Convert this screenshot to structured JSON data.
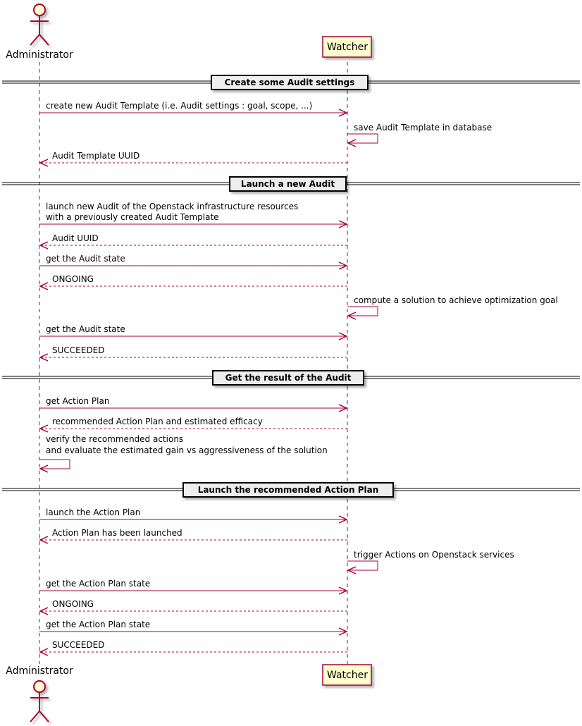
{
  "colors": {
    "line": "#A80036",
    "participant_fill": "#FEFECE",
    "divider_fill": "#EEEEEE"
  },
  "participants": {
    "admin": {
      "label": "Administrator",
      "kind": "actor"
    },
    "watcher": {
      "label": "Watcher",
      "kind": "participant"
    }
  },
  "events": [
    {
      "type": "divider",
      "text": "Create some Audit settings"
    },
    {
      "type": "sync",
      "from": "admin",
      "to": "watcher",
      "lines": [
        "create new Audit Template (i.e. Audit settings : goal, scope, ...)"
      ]
    },
    {
      "type": "self",
      "on": "watcher",
      "lines": [
        "save Audit Template in database"
      ]
    },
    {
      "type": "return",
      "from": "watcher",
      "to": "admin",
      "lines": [
        "Audit Template UUID"
      ]
    },
    {
      "type": "divider",
      "text": "Launch a new Audit"
    },
    {
      "type": "sync",
      "from": "admin",
      "to": "watcher",
      "lines": [
        "launch new Audit of the Openstack infrastructure resources",
        "with a previously created Audit Template"
      ]
    },
    {
      "type": "return",
      "from": "watcher",
      "to": "admin",
      "lines": [
        "Audit UUID"
      ]
    },
    {
      "type": "sync",
      "from": "admin",
      "to": "watcher",
      "lines": [
        "get the Audit state"
      ]
    },
    {
      "type": "return",
      "from": "watcher",
      "to": "admin",
      "lines": [
        "ONGOING"
      ]
    },
    {
      "type": "self",
      "on": "watcher",
      "lines": [
        "compute a solution to achieve optimization goal"
      ]
    },
    {
      "type": "sync",
      "from": "admin",
      "to": "watcher",
      "lines": [
        "get the Audit state"
      ]
    },
    {
      "type": "return",
      "from": "watcher",
      "to": "admin",
      "lines": [
        "SUCCEEDED"
      ]
    },
    {
      "type": "divider",
      "text": "Get the result of the Audit"
    },
    {
      "type": "sync",
      "from": "admin",
      "to": "watcher",
      "lines": [
        "get Action Plan"
      ]
    },
    {
      "type": "return",
      "from": "watcher",
      "to": "admin",
      "lines": [
        "recommended Action Plan and estimated efficacy"
      ]
    },
    {
      "type": "self",
      "on": "admin",
      "lines": [
        "verify the recommended actions",
        "and evaluate the estimated gain vs aggressiveness of the solution"
      ]
    },
    {
      "type": "divider",
      "text": "Launch the recommended Action Plan"
    },
    {
      "type": "sync",
      "from": "admin",
      "to": "watcher",
      "lines": [
        "launch the Action Plan"
      ]
    },
    {
      "type": "return",
      "from": "watcher",
      "to": "admin",
      "lines": [
        "Action Plan has been launched"
      ]
    },
    {
      "type": "self",
      "on": "watcher",
      "lines": [
        "trigger Actions on Openstack services"
      ]
    },
    {
      "type": "sync",
      "from": "admin",
      "to": "watcher",
      "lines": [
        "get the Action Plan state"
      ]
    },
    {
      "type": "return",
      "from": "watcher",
      "to": "admin",
      "lines": [
        "ONGOING"
      ]
    },
    {
      "type": "sync",
      "from": "admin",
      "to": "watcher",
      "lines": [
        "get the Action Plan state"
      ]
    },
    {
      "type": "return",
      "from": "watcher",
      "to": "admin",
      "lines": [
        "SUCCEEDED"
      ]
    }
  ]
}
